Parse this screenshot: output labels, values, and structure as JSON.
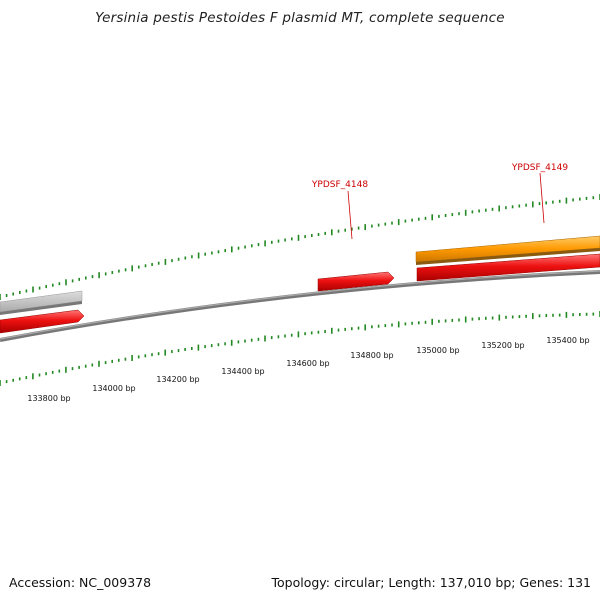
{
  "title": "Yersinia pestis Pestoides F plasmid MT, complete sequence",
  "footer": {
    "accession": "Accession: NC_009378",
    "stats": "Topology: circular; Length: 137,010 bp; Genes: 131"
  },
  "colors": {
    "cds_forward": "#ee1111",
    "cds_reverse_orange": "#ff9900",
    "cds_gray": "#bbbbbb",
    "backbone": "#888888",
    "ticks": "#228822",
    "gene_label": "#cc0000"
  },
  "position_labels": [
    "133800 bp",
    "134000 bp",
    "134200 bp",
    "134400 bp",
    "134600 bp",
    "134800 bp",
    "135000 bp",
    "135200 bp",
    "135400 bp"
  ],
  "gene_labels": [
    "YPDSF_4148",
    "YPDSF_4149"
  ]
}
